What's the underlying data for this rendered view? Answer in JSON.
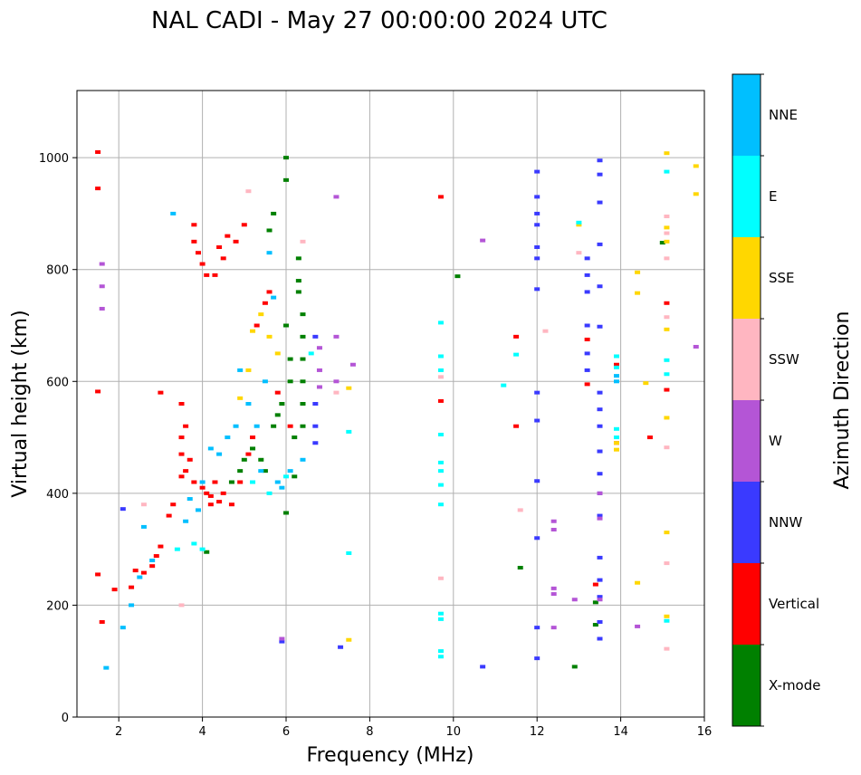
{
  "chart_data": {
    "type": "scatter",
    "title": "NAL CADI - May 27 00:00:00 2024 UTC",
    "xlabel": "Frequency (MHz)",
    "ylabel": "Virtual height (km)",
    "xlim": [
      1,
      16
    ],
    "ylim": [
      0,
      1120
    ],
    "xticks": [
      2,
      4,
      6,
      8,
      10,
      12,
      14,
      16
    ],
    "yticks": [
      0,
      200,
      400,
      600,
      800,
      1000
    ],
    "grid": true,
    "colorbar": {
      "title": "Azimuth Direction",
      "categories": [
        "X-mode",
        "Vertical",
        "NNW",
        "W",
        "SSW",
        "SSE",
        "E",
        "NNE"
      ],
      "colors": {
        "X-mode": "#008000",
        "Vertical": "#ff0000",
        "NNW": "#3a3aff",
        "W": "#b455d6",
        "SSW": "#ffb6c1",
        "SSE": "#ffd700",
        "E": "#00ffff",
        "NNE": "#00bfff"
      }
    },
    "series": [
      {
        "name": "Vertical",
        "points": [
          [
            1.5,
            1010
          ],
          [
            1.5,
            945
          ],
          [
            1.5,
            582
          ],
          [
            1.5,
            255
          ],
          [
            1.6,
            170
          ],
          [
            1.9,
            228
          ],
          [
            2.3,
            232
          ],
          [
            2.4,
            262
          ],
          [
            2.6,
            258
          ],
          [
            2.8,
            270
          ],
          [
            2.9,
            288
          ],
          [
            3.0,
            305
          ],
          [
            3.0,
            580
          ],
          [
            3.2,
            360
          ],
          [
            3.3,
            380
          ],
          [
            3.5,
            430
          ],
          [
            3.5,
            470
          ],
          [
            3.5,
            500
          ],
          [
            3.5,
            560
          ],
          [
            3.6,
            520
          ],
          [
            3.6,
            440
          ],
          [
            3.7,
            460
          ],
          [
            3.8,
            420
          ],
          [
            3.8,
            880
          ],
          [
            3.8,
            850
          ],
          [
            3.9,
            830
          ],
          [
            4.0,
            410
          ],
          [
            4.0,
            810
          ],
          [
            4.1,
            400
          ],
          [
            4.1,
            790
          ],
          [
            4.2,
            395
          ],
          [
            4.2,
            380
          ],
          [
            4.3,
            790
          ],
          [
            4.3,
            420
          ],
          [
            4.4,
            385
          ],
          [
            4.4,
            840
          ],
          [
            4.5,
            400
          ],
          [
            4.5,
            820
          ],
          [
            4.6,
            860
          ],
          [
            4.7,
            380
          ],
          [
            4.8,
            850
          ],
          [
            4.9,
            420
          ],
          [
            5.0,
            880
          ],
          [
            5.1,
            470
          ],
          [
            5.2,
            500
          ],
          [
            5.3,
            700
          ],
          [
            5.5,
            740
          ],
          [
            5.6,
            760
          ],
          [
            5.8,
            580
          ],
          [
            6.1,
            520
          ],
          [
            9.7,
            930
          ],
          [
            9.7,
            565
          ],
          [
            11.5,
            520
          ],
          [
            11.5,
            680
          ],
          [
            13.2,
            675
          ],
          [
            13.2,
            595
          ],
          [
            13.4,
            237
          ],
          [
            13.9,
            630
          ],
          [
            13.9,
            490
          ],
          [
            14.7,
            500
          ],
          [
            15.1,
            740
          ],
          [
            15.1,
            585
          ]
        ]
      },
      {
        "name": "X-mode",
        "points": [
          [
            4.1,
            295
          ],
          [
            4.7,
            420
          ],
          [
            4.9,
            440
          ],
          [
            5.0,
            460
          ],
          [
            5.2,
            480
          ],
          [
            5.4,
            460
          ],
          [
            5.5,
            440
          ],
          [
            5.6,
            870
          ],
          [
            5.7,
            900
          ],
          [
            5.7,
            520
          ],
          [
            5.8,
            540
          ],
          [
            5.9,
            560
          ],
          [
            6.0,
            960
          ],
          [
            6.0,
            1000
          ],
          [
            6.0,
            700
          ],
          [
            6.1,
            640
          ],
          [
            6.1,
            600
          ],
          [
            6.2,
            500
          ],
          [
            6.2,
            430
          ],
          [
            6.3,
            820
          ],
          [
            6.3,
            780
          ],
          [
            6.3,
            760
          ],
          [
            6.4,
            720
          ],
          [
            6.4,
            680
          ],
          [
            6.4,
            640
          ],
          [
            6.4,
            600
          ],
          [
            6.4,
            560
          ],
          [
            6.4,
            520
          ],
          [
            6.0,
            365
          ],
          [
            10.1,
            788
          ],
          [
            11.6,
            267
          ],
          [
            12.9,
            90
          ],
          [
            13.4,
            165
          ],
          [
            13.4,
            205
          ],
          [
            15.0,
            848
          ]
        ]
      },
      {
        "name": "NNW",
        "points": [
          [
            2.1,
            372
          ],
          [
            5.9,
            135
          ],
          [
            6.7,
            680
          ],
          [
            6.7,
            560
          ],
          [
            6.7,
            520
          ],
          [
            6.7,
            490
          ],
          [
            7.3,
            125
          ],
          [
            10.7,
            90
          ],
          [
            12.0,
            975
          ],
          [
            12.0,
            930
          ],
          [
            12.0,
            900
          ],
          [
            12.0,
            880
          ],
          [
            12.0,
            840
          ],
          [
            12.0,
            820
          ],
          [
            12.0,
            765
          ],
          [
            12.0,
            580
          ],
          [
            12.0,
            530
          ],
          [
            12.0,
            422
          ],
          [
            12.0,
            320
          ],
          [
            12.0,
            160
          ],
          [
            12.0,
            105
          ],
          [
            13.2,
            820
          ],
          [
            13.2,
            790
          ],
          [
            13.2,
            760
          ],
          [
            13.2,
            700
          ],
          [
            13.2,
            650
          ],
          [
            13.2,
            620
          ],
          [
            13.5,
            995
          ],
          [
            13.5,
            970
          ],
          [
            13.5,
            920
          ],
          [
            13.5,
            845
          ],
          [
            13.5,
            770
          ],
          [
            13.5,
            698
          ],
          [
            13.5,
            580
          ],
          [
            13.5,
            550
          ],
          [
            13.5,
            520
          ],
          [
            13.5,
            475
          ],
          [
            13.5,
            435
          ],
          [
            13.5,
            400
          ],
          [
            13.5,
            360
          ],
          [
            13.5,
            285
          ],
          [
            13.5,
            245
          ],
          [
            13.5,
            215
          ],
          [
            13.5,
            170
          ],
          [
            13.5,
            140
          ]
        ]
      },
      {
        "name": "W",
        "points": [
          [
            1.6,
            810
          ],
          [
            1.6,
            770
          ],
          [
            1.6,
            730
          ],
          [
            5.9,
            140
          ],
          [
            6.8,
            660
          ],
          [
            6.8,
            620
          ],
          [
            6.8,
            590
          ],
          [
            7.2,
            930
          ],
          [
            7.2,
            680
          ],
          [
            7.2,
            600
          ],
          [
            7.6,
            630
          ],
          [
            10.7,
            852
          ],
          [
            12.4,
            350
          ],
          [
            12.4,
            335
          ],
          [
            12.4,
            230
          ],
          [
            12.4,
            220
          ],
          [
            12.4,
            160
          ],
          [
            12.9,
            210
          ],
          [
            13.5,
            400
          ],
          [
            13.5,
            355
          ],
          [
            13.5,
            210
          ],
          [
            14.4,
            162
          ],
          [
            15.8,
            662
          ]
        ]
      },
      {
        "name": "SSW",
        "points": [
          [
            2.6,
            380
          ],
          [
            3.5,
            200
          ],
          [
            5.1,
            940
          ],
          [
            6.4,
            850
          ],
          [
            7.2,
            580
          ],
          [
            9.7,
            248
          ],
          [
            9.7,
            608
          ],
          [
            11.6,
            370
          ],
          [
            12.2,
            690
          ],
          [
            13.0,
            830
          ],
          [
            15.1,
            895
          ],
          [
            15.1,
            865
          ],
          [
            15.1,
            820
          ],
          [
            15.1,
            715
          ],
          [
            15.1,
            482
          ],
          [
            15.1,
            275
          ],
          [
            15.1,
            122
          ]
        ]
      },
      {
        "name": "SSE",
        "points": [
          [
            4.9,
            570
          ],
          [
            5.1,
            620
          ],
          [
            5.2,
            690
          ],
          [
            5.4,
            720
          ],
          [
            5.6,
            680
          ],
          [
            5.8,
            650
          ],
          [
            7.5,
            138
          ],
          [
            7.5,
            588
          ],
          [
            13.0,
            880
          ],
          [
            13.9,
            490
          ],
          [
            13.9,
            478
          ],
          [
            14.4,
            795
          ],
          [
            14.4,
            758
          ],
          [
            14.6,
            597
          ],
          [
            14.4,
            240
          ],
          [
            15.1,
            1008
          ],
          [
            15.1,
            875
          ],
          [
            15.1,
            850
          ],
          [
            15.1,
            693
          ],
          [
            15.1,
            535
          ],
          [
            15.1,
            330
          ],
          [
            15.1,
            180
          ],
          [
            15.8,
            985
          ],
          [
            15.8,
            935
          ]
        ]
      },
      {
        "name": "E",
        "points": [
          [
            3.4,
            300
          ],
          [
            3.8,
            310
          ],
          [
            4.0,
            300
          ],
          [
            5.2,
            420
          ],
          [
            5.6,
            400
          ],
          [
            6.0,
            430
          ],
          [
            6.6,
            650
          ],
          [
            7.5,
            510
          ],
          [
            7.5,
            293
          ],
          [
            9.7,
            705
          ],
          [
            9.7,
            645
          ],
          [
            9.7,
            620
          ],
          [
            9.7,
            505
          ],
          [
            9.7,
            455
          ],
          [
            9.7,
            440
          ],
          [
            9.7,
            415
          ],
          [
            9.7,
            380
          ],
          [
            9.7,
            185
          ],
          [
            9.7,
            175
          ],
          [
            9.7,
            118
          ],
          [
            9.7,
            108
          ],
          [
            11.2,
            593
          ],
          [
            11.5,
            648
          ],
          [
            13.0,
            884
          ],
          [
            13.9,
            645
          ],
          [
            13.9,
            625
          ],
          [
            13.9,
            515
          ],
          [
            13.9,
            500
          ],
          [
            15.1,
            975
          ],
          [
            15.1,
            638
          ],
          [
            15.1,
            613
          ],
          [
            15.1,
            172
          ]
        ]
      },
      {
        "name": "NNE",
        "points": [
          [
            1.7,
            88
          ],
          [
            2.1,
            160
          ],
          [
            2.3,
            200
          ],
          [
            2.5,
            250
          ],
          [
            2.6,
            340
          ],
          [
            2.8,
            280
          ],
          [
            3.3,
            900
          ],
          [
            3.6,
            350
          ],
          [
            3.7,
            390
          ],
          [
            3.9,
            370
          ],
          [
            4.0,
            420
          ],
          [
            4.2,
            480
          ],
          [
            4.4,
            470
          ],
          [
            4.6,
            500
          ],
          [
            4.8,
            520
          ],
          [
            4.9,
            620
          ],
          [
            5.1,
            560
          ],
          [
            5.3,
            520
          ],
          [
            5.4,
            440
          ],
          [
            5.5,
            600
          ],
          [
            5.6,
            830
          ],
          [
            5.7,
            750
          ],
          [
            5.8,
            420
          ],
          [
            5.9,
            410
          ],
          [
            6.1,
            440
          ],
          [
            6.4,
            460
          ],
          [
            13.9,
            610
          ],
          [
            13.9,
            600
          ]
        ]
      }
    ]
  }
}
